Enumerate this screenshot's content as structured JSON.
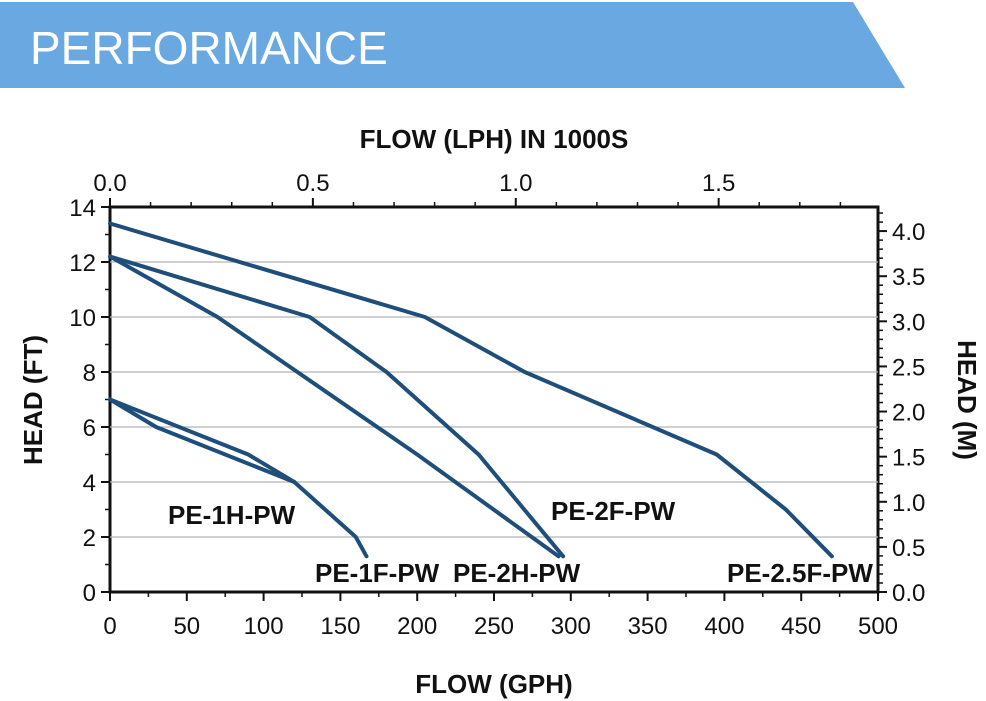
{
  "header": {
    "title": "PERFORMANCE",
    "color": "#69a8e0"
  },
  "chart_data": {
    "type": "line",
    "xlabel": "FLOW (GPH)",
    "ylabel": "HEAD (FT)",
    "x2label": "FLOW (LPH) IN 1000S",
    "y2label": "HEAD (M)",
    "xlim": [
      0,
      500
    ],
    "ylim": [
      0,
      14
    ],
    "x2lim": [
      0,
      1.8927
    ],
    "y2lim": [
      0,
      4.267
    ],
    "xticks": [
      "0",
      "50",
      "100",
      "150",
      "200",
      "250",
      "300",
      "350",
      "400",
      "450",
      "500"
    ],
    "yticks": [
      "0",
      "2",
      "4",
      "6",
      "8",
      "10",
      "12",
      "14"
    ],
    "x2ticks": [
      "0.0",
      "0.5",
      "1.0",
      "1.5"
    ],
    "y2ticks": [
      "0.0",
      "0.5",
      "1.0",
      "1.5",
      "2.0",
      "2.5",
      "3.0",
      "3.5",
      "4.0"
    ],
    "grid": "horizontal",
    "line_color": "#1f4e7a",
    "series": [
      {
        "name": "PE-1H-PW",
        "points": [
          [
            0,
            7.0
          ],
          [
            30,
            6.0
          ],
          [
            120,
            4.0
          ]
        ]
      },
      {
        "name": "PE-1F-PW",
        "points": [
          [
            0,
            7.0
          ],
          [
            90,
            5.0
          ],
          [
            120,
            4.0
          ],
          [
            160,
            2.0
          ],
          [
            167,
            1.3
          ]
        ]
      },
      {
        "name": "PE-2H-PW",
        "points": [
          [
            0,
            12.2
          ],
          [
            70,
            10.0
          ],
          [
            200,
            5.0
          ],
          [
            292,
            1.3
          ]
        ]
      },
      {
        "name": "PE-2F-PW",
        "points": [
          [
            0,
            12.2
          ],
          [
            130,
            10.0
          ],
          [
            180,
            8.0
          ],
          [
            240,
            5.0
          ],
          [
            295,
            1.3
          ]
        ]
      },
      {
        "name": "PE-2.5F-PW",
        "points": [
          [
            0,
            13.4
          ],
          [
            205,
            10.0
          ],
          [
            270,
            8.0
          ],
          [
            395,
            5.0
          ],
          [
            440,
            3.0
          ],
          [
            470,
            1.3
          ]
        ]
      }
    ]
  }
}
